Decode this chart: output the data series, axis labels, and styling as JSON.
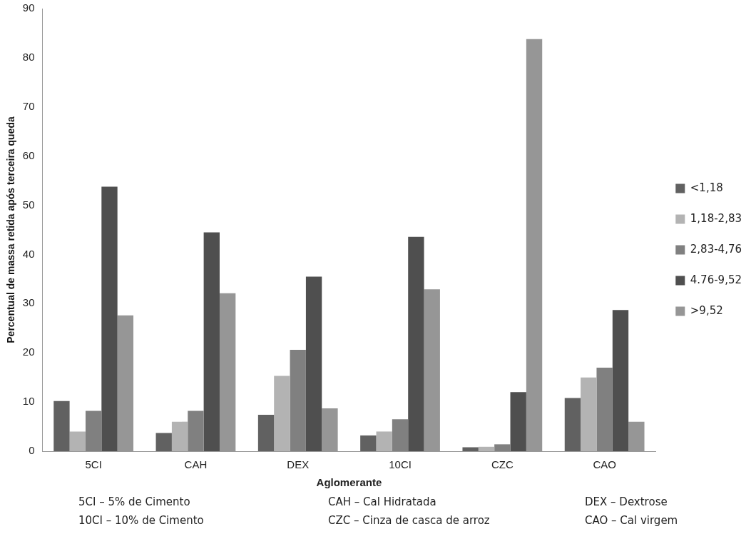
{
  "chart_data": {
    "type": "bar",
    "xlabel": "Aglomerante",
    "ylabel": "Percentual de massa retida após terceira queda",
    "categories": [
      "5CI",
      "CAH",
      "DEX",
      "10CI",
      "CZC",
      "CAO"
    ],
    "series": [
      {
        "name": "<1,18",
        "color": "#616161",
        "values": [
          10.2,
          3.7,
          7.4,
          3.2,
          0.8,
          10.8
        ]
      },
      {
        "name": "1,18-2,83",
        "color": "#b3b3b3",
        "values": [
          4,
          6,
          15.3,
          4,
          0.9,
          15
        ]
      },
      {
        "name": "2,83-4,76",
        "color": "#808080",
        "values": [
          8.2,
          8.2,
          20.6,
          6.5,
          1.4,
          17
        ]
      },
      {
        "name": "4.76-9,52",
        "color": "#4f4f4f",
        "values": [
          53.8,
          44.5,
          35.5,
          43.6,
          12,
          28.7
        ]
      },
      {
        "name": ">9,52",
        "color": "#969696",
        "values": [
          27.6,
          32.1,
          8.7,
          32.9,
          83.8,
          6
        ]
      }
    ],
    "ylim": [
      0,
      90
    ],
    "yticks": [
      0,
      10,
      20,
      30,
      40,
      50,
      60,
      70,
      80,
      90
    ],
    "grid": false,
    "legend": "right",
    "annotations": [
      "5CI – 5% de Cimento",
      "CAH – Cal Hidratada",
      "DEX – Dextrose",
      "10CI – 10% de Cimento",
      "CZC – Cinza de casca de arroz",
      "CAO – Cal virgem"
    ]
  }
}
